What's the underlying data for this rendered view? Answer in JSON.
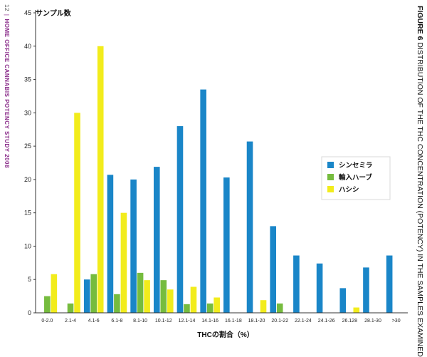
{
  "page_header": {
    "number": "12",
    "separator": "|",
    "title": "HOME OFFICE CANNABIS POTENCY STUDY 2008"
  },
  "figure_caption": {
    "lead": "FIGURE 6",
    "text": "DISTRIBUTION OF THE THC CONCENTRATION (POTENCY) IN THE SAMPLES EXAMINED"
  },
  "chart_data": {
    "type": "bar",
    "title": "",
    "ylabel": "サンプル数",
    "xlabel": "THCの割合（%）",
    "ylim": [
      0,
      45
    ],
    "yticks": [
      0,
      5,
      10,
      15,
      20,
      25,
      30,
      35,
      40,
      45
    ],
    "grid": false,
    "legend_position": "right",
    "categories": [
      "0-2.0",
      "2.1-4",
      "4.1-6",
      "6.1-8",
      "8.1-10",
      "10.1-12",
      "12.1-14",
      "14.1-16",
      "16.1-18",
      "18.1-20",
      "20.1-22",
      "22.1-24",
      "24.1-26",
      "26.128",
      "28.1-30",
      ">30"
    ],
    "series": [
      {
        "name": "シンセミラ",
        "color": "#1a86c8",
        "values": [
          0,
          0,
          5,
          20.7,
          20,
          21.9,
          28,
          33.5,
          20.3,
          25.7,
          13,
          8.6,
          7.4,
          3.7,
          6.8,
          8.6
        ]
      },
      {
        "name": "輸入ハーブ",
        "color": "#76bc3e",
        "values": [
          2.5,
          1.4,
          5.8,
          2.8,
          6,
          4.9,
          1.3,
          1.4,
          0,
          0,
          1.4,
          0,
          0,
          0,
          0,
          0
        ]
      },
      {
        "name": "ハシシ",
        "color": "#f2ec1c",
        "values": [
          5.8,
          30,
          40,
          15,
          4.9,
          3.5,
          3.9,
          2.3,
          0,
          1.9,
          0,
          0,
          0,
          0.8,
          0,
          0
        ]
      }
    ]
  }
}
